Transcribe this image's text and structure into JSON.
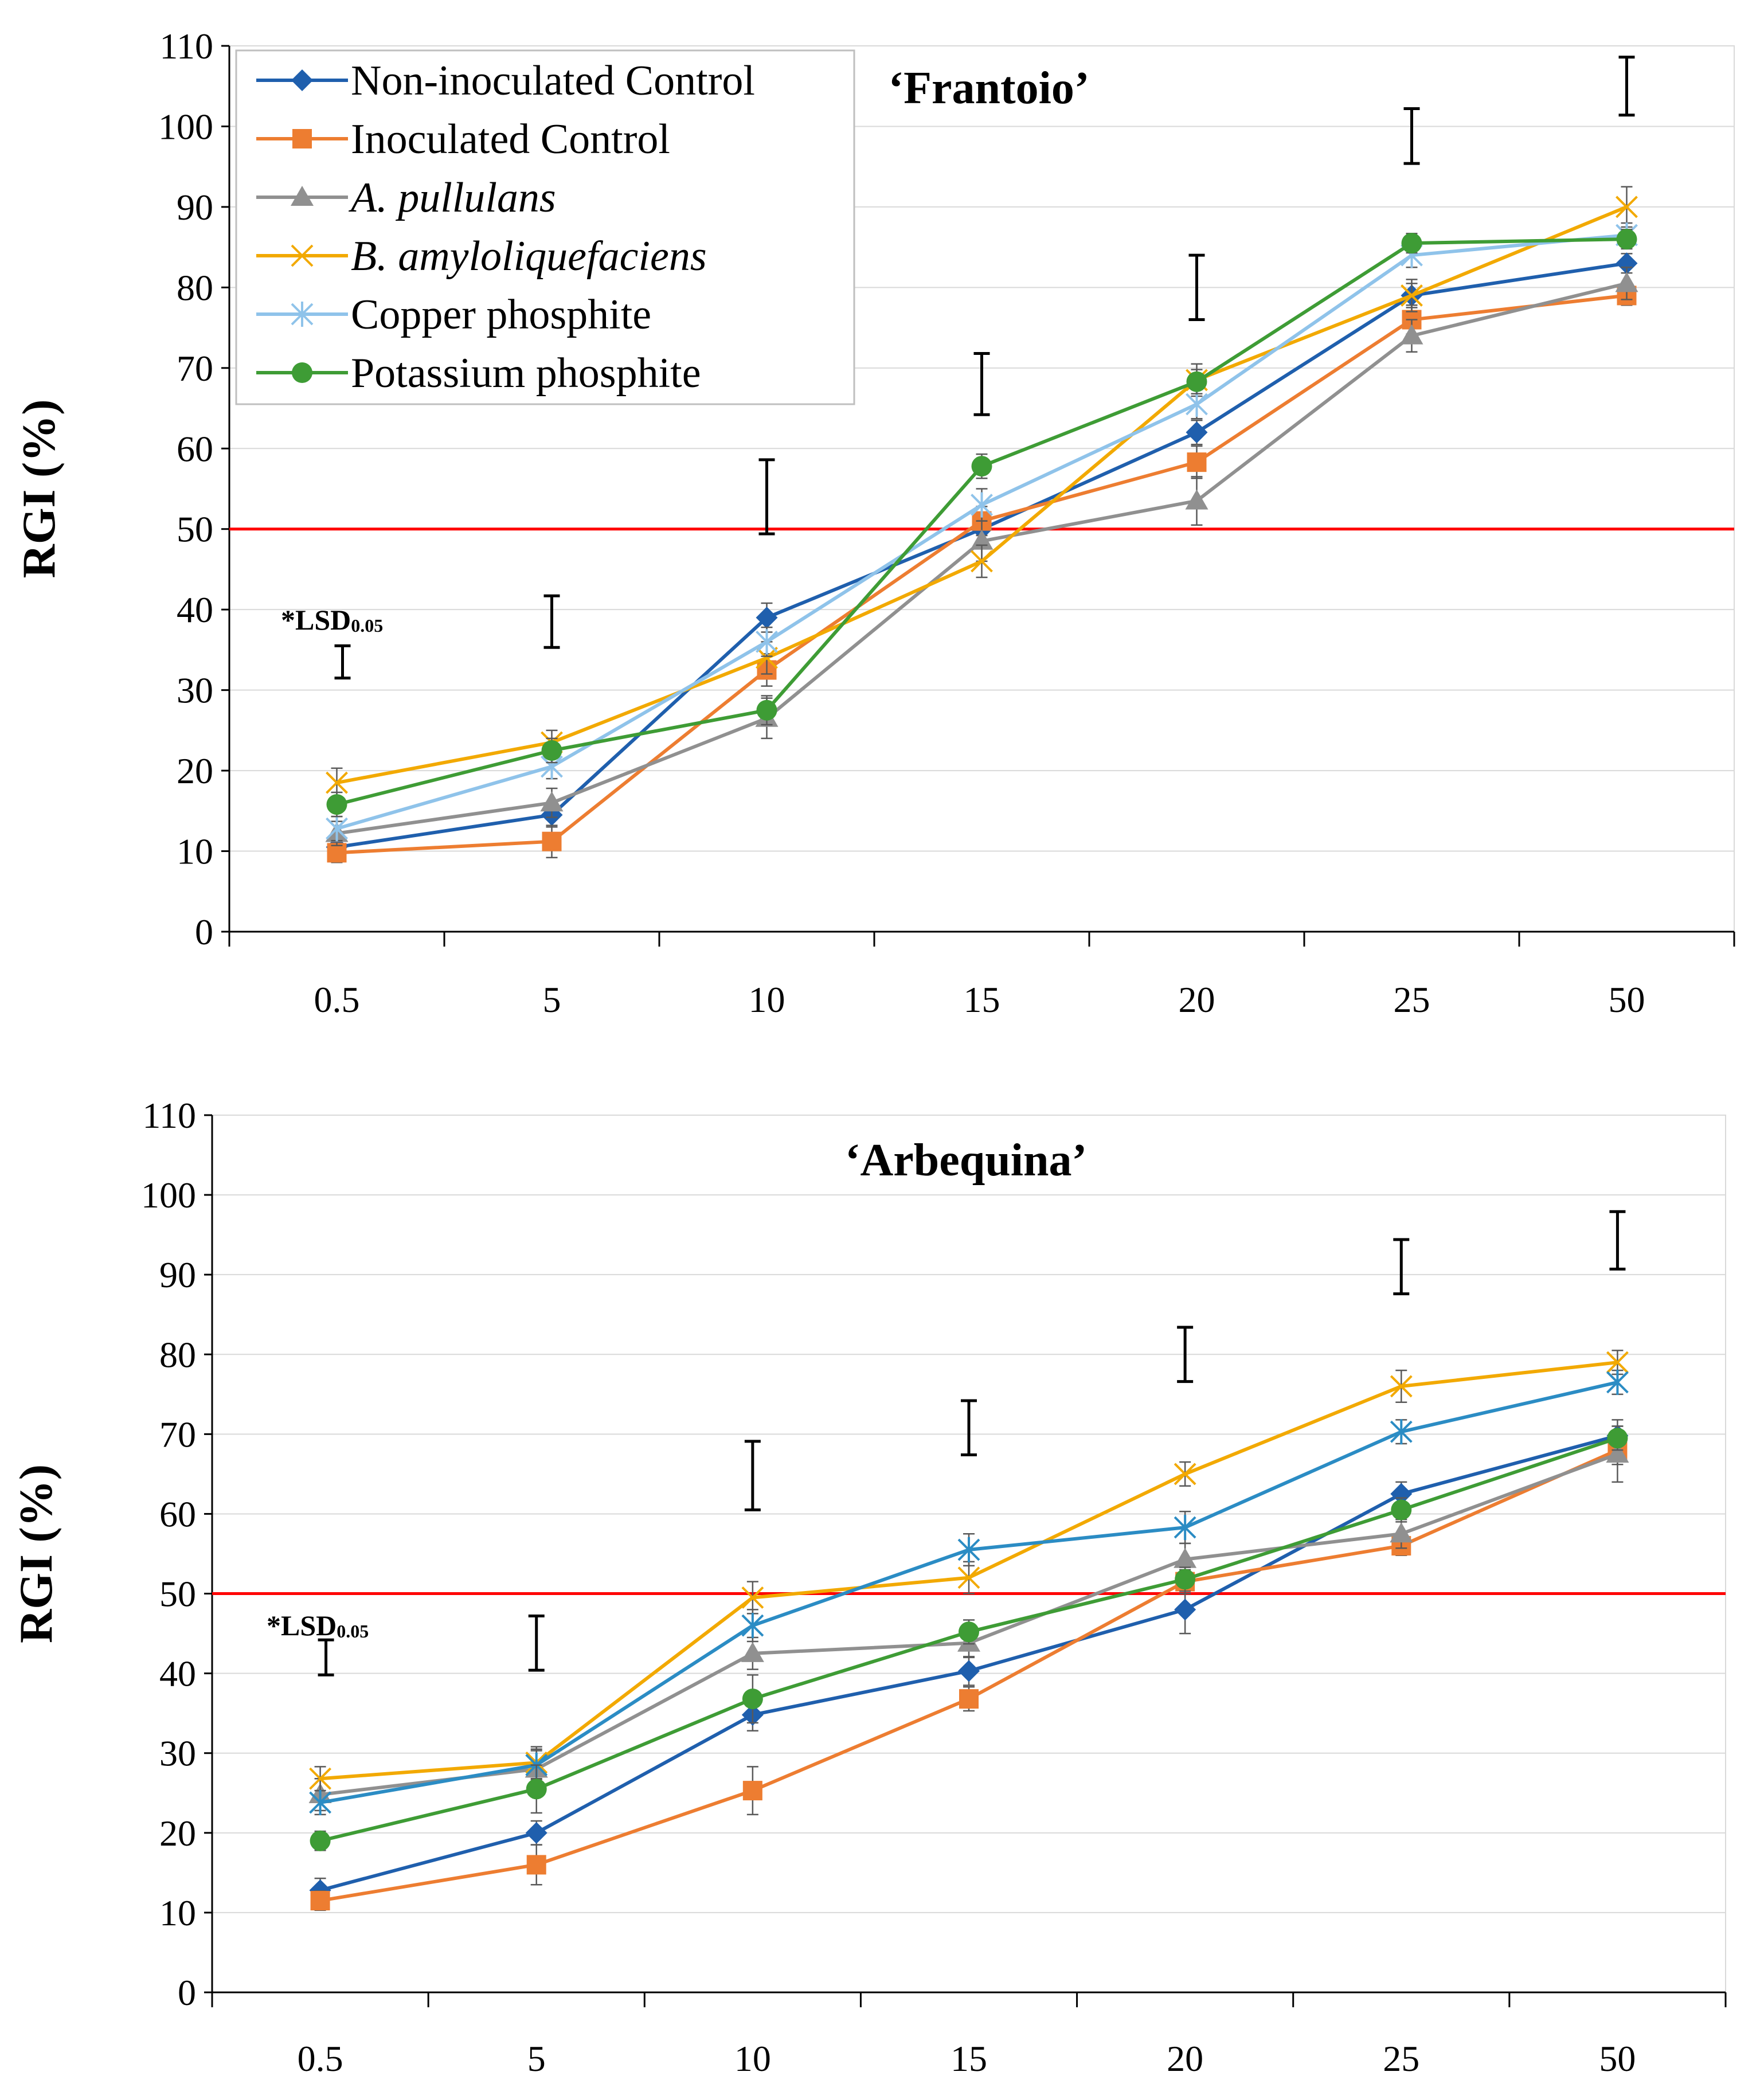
{
  "chart_data": [
    {
      "type": "line",
      "title": "‘Frantoio’",
      "ylabel": "RGI (%)",
      "xlabel": "",
      "categories": [
        "0.5",
        "5",
        "10",
        "15",
        "20",
        "25",
        "50"
      ],
      "ylim": [
        0,
        110
      ],
      "yticks": [
        0,
        10,
        20,
        30,
        40,
        50,
        60,
        70,
        80,
        90,
        100,
        110
      ],
      "grid": true,
      "reference_line": 50,
      "reference_color": "#ff0000",
      "lsd_label": "*LSD",
      "lsd_subscript": "0.05",
      "lsd_bars": [
        {
          "center": 33.5,
          "half": 2.0
        },
        {
          "center": 38.5,
          "half": 3.2
        },
        {
          "center": 54.0,
          "half": 4.6
        },
        {
          "center": 68.0,
          "half": 3.8
        },
        {
          "center": 80.0,
          "half": 4.0
        },
        {
          "center": 98.8,
          "half": 3.4
        },
        {
          "center": 105.0,
          "half": 3.6
        }
      ],
      "series": [
        {
          "name": "Non-inoculated Control",
          "italic": false,
          "marker": "diamond",
          "color": "#1f5fad",
          "values": [
            10.5,
            14.5,
            39,
            50,
            62,
            79,
            83
          ],
          "err": [
            1.2,
            1.5,
            1.8,
            1.5,
            1.5,
            1.5,
            1.2
          ]
        },
        {
          "name": "Inoculated Control",
          "italic": false,
          "marker": "square",
          "color": "#ed7d31",
          "values": [
            9.8,
            11.2,
            32.5,
            51,
            58.3,
            76,
            79
          ],
          "err": [
            1.2,
            2.0,
            2.0,
            1.8,
            2.0,
            1.8,
            1.2
          ]
        },
        {
          "name": "A. pullulans",
          "italic": true,
          "marker": "triangle",
          "color": "#909090",
          "values": [
            12.2,
            16,
            26.5,
            48.5,
            53.5,
            74,
            80.5
          ],
          "err": [
            1.5,
            1.8,
            2.5,
            2.5,
            3.0,
            2.0,
            2.0
          ]
        },
        {
          "name": "B. amyloliquefaciens",
          "italic": true,
          "marker": "x",
          "color": "#f2a900",
          "values": [
            18.5,
            23.5,
            34,
            46,
            68.5,
            79,
            90
          ],
          "err": [
            1.8,
            1.5,
            2.0,
            2.0,
            2.0,
            2.0,
            2.5
          ]
        },
        {
          "name": "Copper phosphite",
          "italic": false,
          "marker": "star",
          "color": "#8fc3ea",
          "values": [
            12.8,
            20.5,
            36,
            53,
            65.5,
            84,
            86.5
          ],
          "err": [
            1.5,
            1.5,
            1.8,
            2.0,
            1.8,
            1.5,
            1.5
          ]
        },
        {
          "name": "Potassium phosphite",
          "italic": false,
          "marker": "circle",
          "color": "#3e9c35",
          "values": [
            15.8,
            22.5,
            27.5,
            57.8,
            68.3,
            85.5,
            86
          ],
          "err": [
            1.5,
            1.5,
            1.8,
            1.5,
            1.5,
            1.2,
            1.2
          ]
        }
      ]
    },
    {
      "type": "line",
      "title": "‘Arbequina’",
      "ylabel": "RGI (%)",
      "xlabel": "",
      "categories": [
        "0.5",
        "5",
        "10",
        "15",
        "20",
        "25",
        "50"
      ],
      "ylim": [
        0,
        110
      ],
      "yticks": [
        0,
        10,
        20,
        30,
        40,
        50,
        60,
        70,
        80,
        90,
        100,
        110
      ],
      "grid": true,
      "reference_line": 50,
      "reference_color": "#ff0000",
      "lsd_label": "*LSD",
      "lsd_subscript": "0.05",
      "lsd_bars": [
        {
          "center": 42.0,
          "half": 2.2
        },
        {
          "center": 43.8,
          "half": 3.4
        },
        {
          "center": 64.8,
          "half": 4.3
        },
        {
          "center": 70.8,
          "half": 3.4
        },
        {
          "center": 80.0,
          "half": 3.4
        },
        {
          "center": 91.0,
          "half": 3.4
        },
        {
          "center": 94.3,
          "half": 3.6
        }
      ],
      "series": [
        {
          "name": "Non-inoculated Control",
          "italic": false,
          "marker": "diamond",
          "color": "#1f5fad",
          "values": [
            12.8,
            20,
            34.8,
            40.3,
            48,
            62.5,
            69.8
          ],
          "err": [
            1.5,
            1.5,
            2.0,
            1.8,
            3.0,
            1.5,
            2.0
          ]
        },
        {
          "name": "Inoculated Control",
          "italic": false,
          "marker": "square",
          "color": "#ed7d31",
          "values": [
            11.5,
            16,
            25.3,
            36.8,
            51.5,
            56,
            68
          ],
          "err": [
            1.2,
            2.5,
            3.0,
            1.5,
            1.5,
            1.2,
            1.8
          ]
        },
        {
          "name": "A. pullulans",
          "italic": true,
          "marker": "triangle",
          "color": "#909090",
          "values": [
            24.8,
            28,
            42.5,
            43.8,
            54.3,
            57.5,
            67.5
          ],
          "err": [
            2.0,
            2.5,
            2.0,
            1.8,
            2.0,
            1.8,
            3.5
          ]
        },
        {
          "name": "B. amyloliquefaciens",
          "italic": true,
          "marker": "x",
          "color": "#f2a900",
          "values": [
            26.8,
            28.8,
            49.5,
            52,
            65,
            76,
            79
          ],
          "err": [
            1.5,
            2.0,
            2.0,
            2.0,
            1.5,
            2.0,
            1.5
          ]
        },
        {
          "name": "Copper phosphite",
          "italic": false,
          "marker": "star",
          "color": "#2b8cc4",
          "values": [
            23.8,
            28.5,
            46,
            55.5,
            58.3,
            70.3,
            76.5
          ],
          "err": [
            1.5,
            1.8,
            2.0,
            2.0,
            2.0,
            1.5,
            1.5
          ]
        },
        {
          "name": "Potassium phosphite",
          "italic": false,
          "marker": "circle",
          "color": "#3e9c35",
          "values": [
            19,
            25.5,
            36.8,
            45.2,
            51.8,
            60.5,
            69.5
          ],
          "err": [
            1.2,
            3.0,
            3.0,
            1.5,
            1.5,
            1.5,
            1.5
          ]
        }
      ]
    }
  ]
}
